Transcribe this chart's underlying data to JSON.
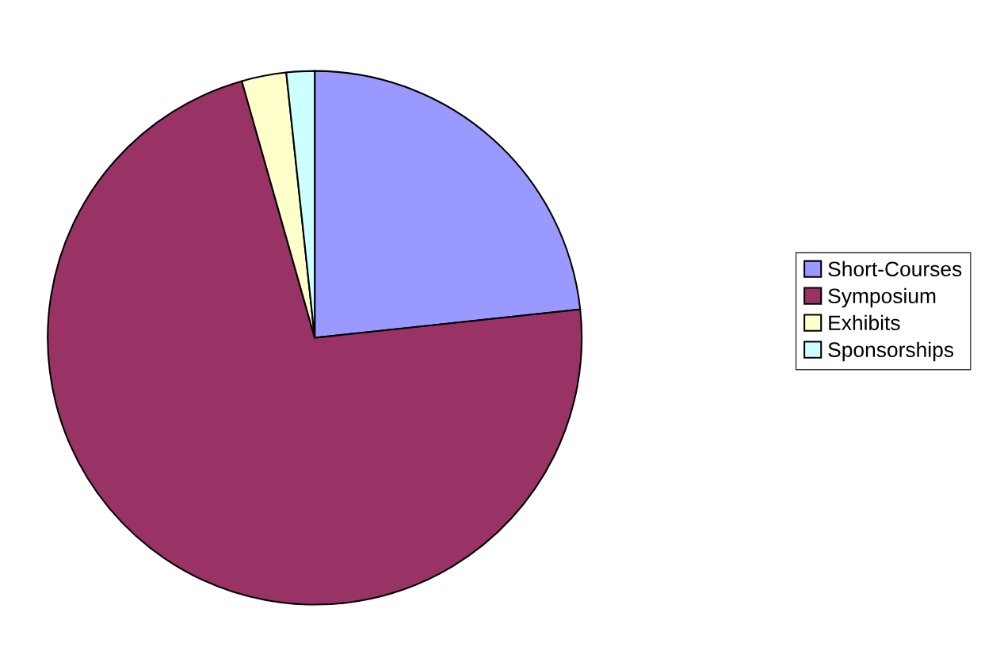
{
  "chart_data": {
    "type": "pie",
    "categories": [
      "Short-Courses",
      "Symposium",
      "Exhibits",
      "Sponsorships"
    ],
    "values": [
      23.3,
      72.3,
      2.7,
      1.7
    ],
    "colors": [
      "#9999ff",
      "#993366",
      "#ffffcc",
      "#ccffff"
    ],
    "legend": "right"
  }
}
